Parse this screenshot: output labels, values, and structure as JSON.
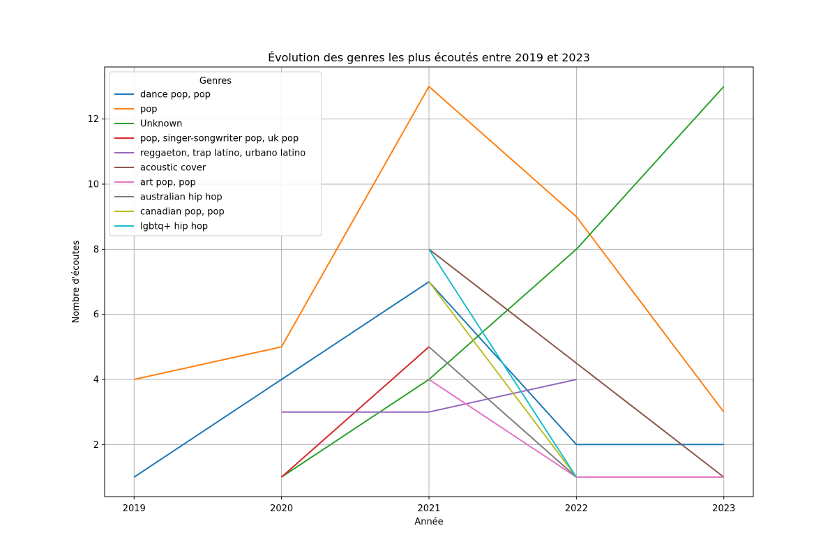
{
  "chart_data": {
    "type": "line",
    "title": "Évolution des genres les plus écoutés entre 2019 et 2023",
    "xlabel": "Année",
    "ylabel": "Nombre d'écoutes",
    "x": [
      "2019",
      "2020",
      "2021",
      "2022",
      "2023"
    ],
    "xlim": [
      2018.8,
      2023.2
    ],
    "ylim": [
      0.4,
      13.6
    ],
    "yticks": [
      2,
      4,
      6,
      8,
      10,
      12
    ],
    "grid": true,
    "legend": {
      "title": "Genres",
      "position": "top-left"
    },
    "series": [
      {
        "name": "dance pop, pop",
        "color": "#1f77b4",
        "points": [
          [
            2019,
            1
          ],
          [
            2020,
            4
          ],
          [
            2021,
            7
          ],
          [
            2022,
            2
          ],
          [
            2023,
            2
          ]
        ]
      },
      {
        "name": "pop",
        "color": "#ff7f0e",
        "points": [
          [
            2019,
            4
          ],
          [
            2020,
            5
          ],
          [
            2021,
            13
          ],
          [
            2022,
            9
          ],
          [
            2023,
            3
          ]
        ]
      },
      {
        "name": "Unknown",
        "color": "#2ca02c",
        "points": [
          [
            2020,
            1
          ],
          [
            2021,
            4
          ],
          [
            2022,
            8
          ],
          [
            2023,
            13
          ]
        ]
      },
      {
        "name": "pop, singer-songwriter pop, uk pop",
        "color": "#d62728",
        "points": [
          [
            2020,
            1
          ],
          [
            2021,
            5
          ]
        ]
      },
      {
        "name": "reggaeton, trap latino, urbano latino",
        "color": "#9467bd",
        "points": [
          [
            2020,
            3
          ],
          [
            2021,
            3
          ],
          [
            2022,
            4
          ]
        ]
      },
      {
        "name": "acoustic cover",
        "color": "#8c564b",
        "points": [
          [
            2021,
            8
          ],
          [
            2023,
            1
          ]
        ]
      },
      {
        "name": "art pop, pop",
        "color": "#e377c2",
        "points": [
          [
            2021,
            4
          ],
          [
            2022,
            1
          ],
          [
            2023,
            1
          ]
        ]
      },
      {
        "name": "australian hip hop",
        "color": "#7f7f7f",
        "points": [
          [
            2021,
            5
          ],
          [
            2022,
            1
          ]
        ]
      },
      {
        "name": "canadian pop, pop",
        "color": "#bcbd22",
        "points": [
          [
            2021,
            7
          ],
          [
            2022,
            1
          ]
        ]
      },
      {
        "name": "lgbtq+ hip hop",
        "color": "#17becf",
        "points": [
          [
            2021,
            8
          ],
          [
            2022,
            1
          ]
        ]
      }
    ]
  }
}
